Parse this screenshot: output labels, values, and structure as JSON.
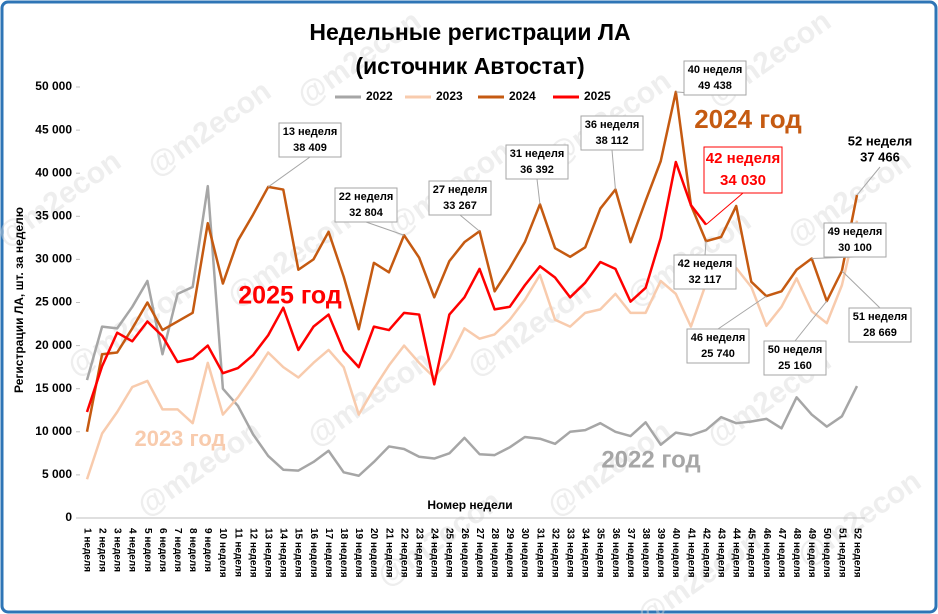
{
  "chart_data": {
    "type": "line",
    "title": "Недельные регистрации ЛА",
    "subtitle": "(источник Автостат)",
    "ylabel": "Регистрации ЛА, шт. за неделю",
    "xlabel": "Номер недели",
    "watermark": "@m2econ",
    "categories": [
      "1 неделя",
      "2 неделя",
      "3 неделя",
      "4 неделя",
      "5 неделя",
      "6 неделя",
      "7 неделя",
      "8 неделя",
      "9 неделя",
      "10 неделя",
      "11 неделя",
      "12 неделя",
      "13 неделя",
      "14 неделя",
      "15 неделя",
      "16 неделя",
      "17 неделя",
      "18 неделя",
      "19 неделя",
      "20 неделя",
      "21 неделя",
      "22 неделя",
      "23 неделя",
      "24 неделя",
      "25 неделя",
      "26 неделя",
      "27 неделя",
      "28 неделя",
      "29 неделя",
      "30 неделя",
      "31 неделя",
      "32 неделя",
      "33 неделя",
      "34 неделя",
      "35 неделя",
      "36 неделя",
      "37 неделя",
      "38 неделя",
      "39 неделя",
      "40 неделя",
      "41 неделя",
      "42 неделя",
      "43 неделя",
      "44 неделя",
      "45 неделя",
      "46 неделя",
      "47 неделя",
      "48 неделя",
      "49 неделя",
      "50 неделя",
      "51 неделя",
      "52 неделя"
    ],
    "series": [
      {
        "name": "2022",
        "color": "#a6a6a6",
        "values": [
          16000,
          22200,
          22000,
          24500,
          27500,
          19000,
          26000,
          26800,
          38500,
          15000,
          13000,
          9700,
          7200,
          5600,
          5500,
          6500,
          7800,
          5300,
          4900,
          6500,
          8300,
          8000,
          7100,
          6900,
          7500,
          9300,
          7400,
          7300,
          8200,
          9400,
          9200,
          8600,
          10000,
          10200,
          11000,
          10000,
          9500,
          11100,
          8500,
          9900,
          9600,
          10200,
          11700,
          11000,
          11200,
          11500,
          10400,
          14000,
          12000,
          10600,
          11800,
          15300
        ]
      },
      {
        "name": "2023",
        "color": "#f8cbad",
        "values": [
          4500,
          9800,
          12300,
          15200,
          15900,
          12600,
          12600,
          11000,
          18000,
          12000,
          14000,
          16500,
          19200,
          17500,
          16300,
          18000,
          19500,
          17500,
          12000,
          15000,
          17700,
          20000,
          18000,
          16300,
          18500,
          22000,
          20800,
          21300,
          23000,
          25300,
          28200,
          23000,
          22200,
          23800,
          24200,
          26000,
          23800,
          23800,
          27500,
          26000,
          22200,
          27200,
          27200,
          29000,
          26800,
          22300,
          24500,
          27800,
          24000,
          22600,
          27000,
          34500
        ]
      },
      {
        "name": "2024",
        "color": "#c55a11",
        "values": [
          10000,
          19000,
          19200,
          22000,
          25000,
          21800,
          22800,
          23800,
          34200,
          27200,
          32200,
          35200,
          38409,
          38100,
          28800,
          30000,
          33200,
          28000,
          21900,
          29600,
          28500,
          32804,
          30200,
          25600,
          29800,
          32000,
          33267,
          26300,
          29000,
          32000,
          36392,
          31300,
          30300,
          31400,
          35900,
          38112,
          32000,
          36800,
          41400,
          49438,
          36300,
          32117,
          32600,
          36200,
          27400,
          25740,
          26300,
          28800,
          30100,
          25160,
          28669,
          37466
        ]
      },
      {
        "name": "2025",
        "color": "#ff0000",
        "values": [
          12300,
          17600,
          21500,
          20500,
          22800,
          21100,
          18100,
          18500,
          20000,
          16800,
          17400,
          18900,
          21200,
          24400,
          19500,
          22200,
          23600,
          19400,
          17500,
          22200,
          21800,
          23800,
          23600,
          15500,
          23600,
          25600,
          28900,
          24200,
          24500,
          27000,
          29200,
          27900,
          25600,
          27300,
          29700,
          28900,
          25100,
          26700,
          32500,
          41300,
          36300,
          34030,
          null,
          null,
          null,
          null,
          null,
          null,
          null,
          null,
          null,
          null
        ]
      }
    ],
    "ylim": [
      0,
      50000
    ],
    "yticks": [
      0,
      {
        "value": 5000,
        "label": "5 000"
      },
      {
        "value": 10000,
        "label": "10 000"
      },
      {
        "value": 15000,
        "label": "15 000"
      },
      {
        "value": 20000,
        "label": "20 000"
      },
      {
        "value": 25000,
        "label": "25 000"
      },
      {
        "value": 30000,
        "label": "30 000"
      },
      {
        "value": 35000,
        "label": "35 000"
      },
      {
        "value": 40000,
        "label": "40 000"
      },
      {
        "value": 45000,
        "label": "45 000"
      },
      {
        "value": 50000,
        "label": "50 000"
      }
    ],
    "year_labels": [
      "2025 год",
      "2024 год",
      "2023 год",
      "2022 год"
    ],
    "annotations": [
      {
        "lines": [
          "13 неделя",
          "38 409"
        ]
      },
      {
        "lines": [
          "22 неделя",
          "32 804"
        ]
      },
      {
        "lines": [
          "27 неделя",
          "33 267"
        ]
      },
      {
        "lines": [
          "31 неделя",
          "36 392"
        ]
      },
      {
        "lines": [
          "36 неделя",
          "38 112"
        ]
      },
      {
        "lines": [
          "40 неделя",
          "49 438"
        ]
      },
      {
        "lines": [
          "42 неделя",
          "34 030"
        ]
      },
      {
        "lines": [
          "42 неделя",
          "32 117"
        ]
      },
      {
        "lines": [
          "46 неделя",
          "25 740"
        ]
      },
      {
        "lines": [
          "49 неделя",
          "30 100"
        ]
      },
      {
        "lines": [
          "50 неделя",
          "25 160"
        ]
      },
      {
        "lines": [
          "51 неделя",
          "28 669"
        ]
      },
      {
        "lines": [
          "52 неделя",
          "37 466"
        ]
      }
    ]
  }
}
